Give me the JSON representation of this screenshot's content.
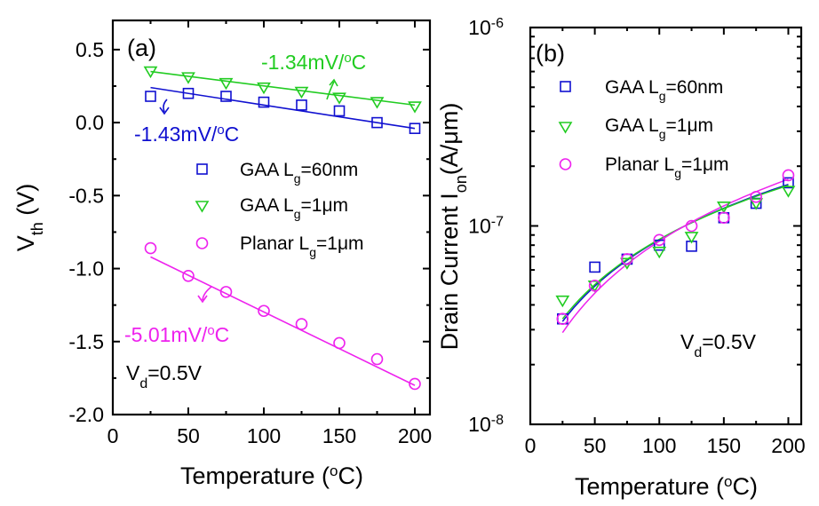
{
  "colors": {
    "blue": "#1010d0",
    "green": "#22cc22",
    "magenta": "#ee22ee",
    "black": "#000000"
  },
  "chart_data": [
    {
      "type": "scatter",
      "panel_label": "(a)",
      "xlabel": {
        "main": "Temperature (",
        "sup": "o",
        "tail": "C)"
      },
      "ylabel": {
        "main": "V",
        "sub": "th",
        "tail": " (V)"
      },
      "xlim": [
        0,
        210
      ],
      "ylim": [
        -2.0,
        0.7
      ],
      "xticks": [
        0,
        50,
        100,
        150,
        200
      ],
      "xtick_labels": [
        "0",
        "50",
        "100",
        "150",
        "200"
      ],
      "yticks": [
        0.5,
        0.0,
        -0.5,
        -1.0,
        -1.5,
        -2.0
      ],
      "ytick_labels": [
        "0.5",
        "0.0",
        "-0.5",
        "-1.0",
        "-1.5",
        "-2.0"
      ],
      "x": [
        25,
        50,
        75,
        100,
        125,
        150,
        175,
        200
      ],
      "series": [
        {
          "name": {
            "main": "GAA L",
            "sub": "g",
            "tail": "=60nm"
          },
          "marker": "square",
          "color": "#1010d0",
          "values": [
            0.18,
            0.2,
            0.18,
            0.14,
            0.12,
            0.08,
            0.0,
            -0.04
          ],
          "fit": [
            0.24,
            -0.04
          ]
        },
        {
          "name": {
            "main": "GAA L",
            "sub": "g",
            "tail": "=1μm"
          },
          "marker": "triangle-down",
          "color": "#22cc22",
          "values": [
            0.35,
            0.31,
            0.27,
            0.24,
            0.21,
            0.17,
            0.14,
            0.11
          ],
          "fit": [
            0.35,
            0.12
          ]
        },
        {
          "name": {
            "main": "Planar L",
            "sub": "g",
            "tail": "=1μm"
          },
          "marker": "circle",
          "color": "#ee22ee",
          "values": [
            -0.86,
            -1.05,
            -1.16,
            -1.29,
            -1.38,
            -1.51,
            -1.62,
            -1.79
          ],
          "fit": [
            -0.92,
            -1.8
          ]
        }
      ],
      "annotations": [
        {
          "main": "-1.34mV/",
          "sup": "o",
          "tail": "C",
          "color": "#22cc22"
        },
        {
          "main": "-1.43mV/",
          "sup": "o",
          "tail": "C",
          "color": "#1010d0"
        },
        {
          "main": "-5.01mV/",
          "sup": "o",
          "tail": "C",
          "color": "#ee22ee"
        },
        {
          "main": "V",
          "sub": "d",
          "tail": "=0.5V",
          "color": "#000000"
        }
      ]
    },
    {
      "type": "scatter",
      "panel_label": "(b)",
      "yscale": "log",
      "xlabel": {
        "main": "Temperature (",
        "sup": "o",
        "tail": "C)"
      },
      "ylabel": {
        "main": "Drain Current I",
        "sub": "on",
        "tail": "(A/μm)"
      },
      "xlim": [
        0,
        210
      ],
      "ylim": [
        1e-08,
        1e-06
      ],
      "xticks": [
        0,
        50,
        100,
        150,
        200
      ],
      "xtick_labels": [
        "0",
        "50",
        "100",
        "150",
        "200"
      ],
      "yticks": [
        {
          "value": 1e-06,
          "base": "10",
          "exp": "-6"
        },
        {
          "value": 1e-07,
          "base": "10",
          "exp": "-7"
        },
        {
          "value": 1e-08,
          "base": "10",
          "exp": "-8"
        }
      ],
      "x": [
        25,
        50,
        75,
        100,
        125,
        150,
        175,
        200
      ],
      "series": [
        {
          "name": {
            "main": "GAA L",
            "sub": "g",
            "tail": "=60nm"
          },
          "marker": "square",
          "color": "#1010d0",
          "values": [
            3.4e-08,
            6.2e-08,
            6.8e-08,
            8e-08,
            7.9e-08,
            1.1e-07,
            1.3e-07,
            1.65e-07
          ],
          "fit": [
            3.3e-08,
            1.62e-07
          ]
        },
        {
          "name": {
            "main": "GAA L",
            "sub": "g",
            "tail": "=1μm"
          },
          "marker": "triangle-down",
          "color": "#22cc22",
          "values": [
            4.2e-08,
            5e-08,
            6.5e-08,
            7.4e-08,
            8.8e-08,
            1.25e-07,
            1.3e-07,
            1.5e-07
          ],
          "fit": [
            3.4e-08,
            1.6e-07
          ]
        },
        {
          "name": {
            "main": "Planar L",
            "sub": "g",
            "tail": "=1μm"
          },
          "marker": "circle",
          "color": "#ee22ee",
          "values": [
            3.4e-08,
            5e-08,
            6.8e-08,
            8.5e-08,
            1e-07,
            1.1e-07,
            1.4e-07,
            1.8e-07
          ],
          "fit": [
            2.9e-08,
            1.72e-07
          ]
        }
      ],
      "annotations": [
        {
          "main": "V",
          "sub": "d",
          "tail": "=0.5V",
          "color": "#000000"
        }
      ]
    }
  ]
}
